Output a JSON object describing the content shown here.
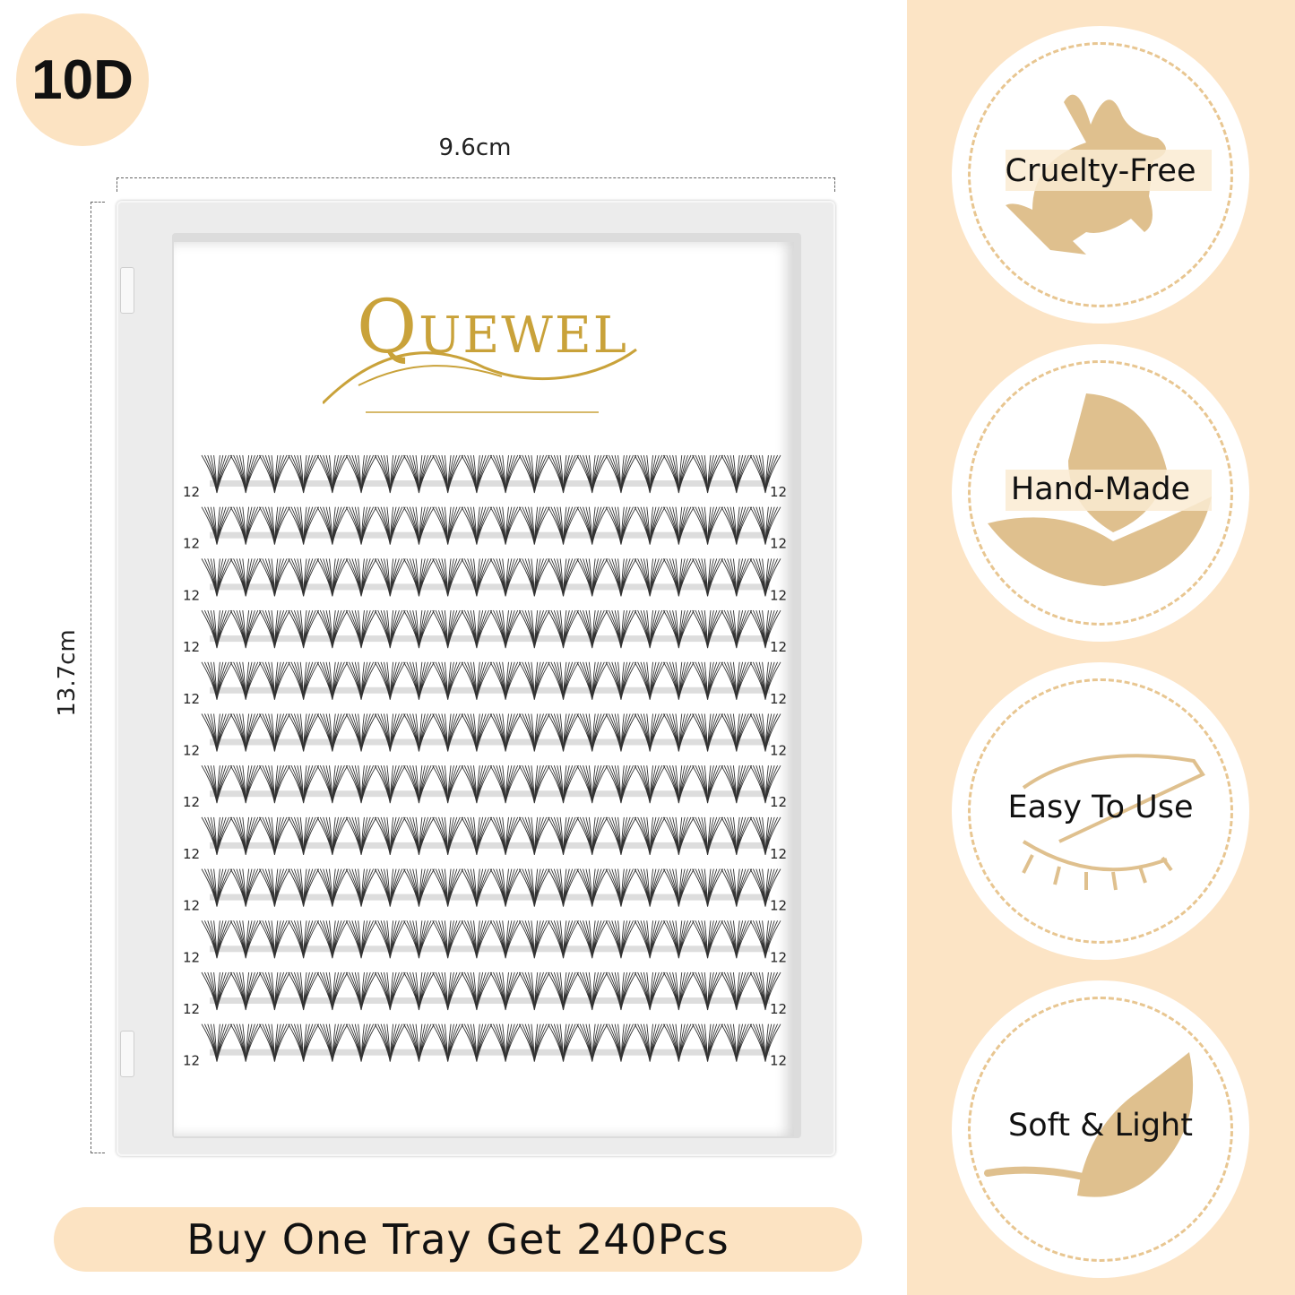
{
  "badge": "10D",
  "dimensions": {
    "width": "9.6cm",
    "height": "13.7cm"
  },
  "brand": {
    "logo_text": "QUEWEL",
    "color": "#c9a23a"
  },
  "tray": {
    "rows": 12,
    "clusters_per_row": 20,
    "row_length_label": "12"
  },
  "promo": "Buy One Tray Get 240Pcs",
  "features": [
    {
      "label": "Cruelty-Free",
      "icon": "rabbit-icon"
    },
    {
      "label": "Hand-Made",
      "icon": "hand-leaf-icon"
    },
    {
      "label": "Easy To Use",
      "icon": "eye-tweezers-icon"
    },
    {
      "label": "Soft & Light",
      "icon": "feather-icon"
    }
  ],
  "colors": {
    "accent": "#fce4c5",
    "icon_gold": "#dfc08e",
    "ring": "#e8c691"
  }
}
